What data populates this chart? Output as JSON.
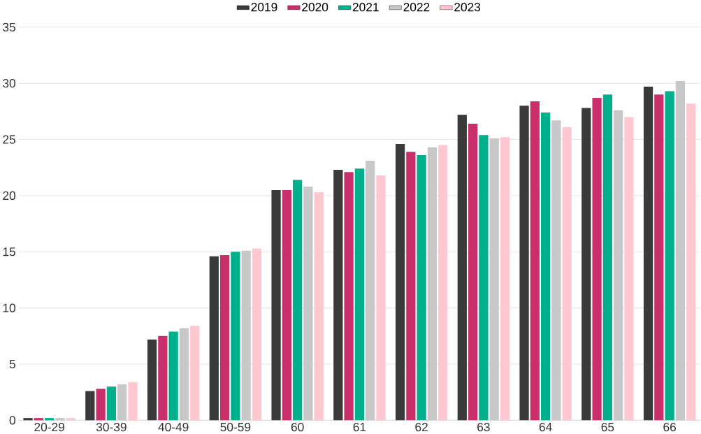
{
  "chart_data": {
    "type": "bar",
    "categories": [
      "20-29",
      "30-39",
      "40-49",
      "50-59",
      "60",
      "61",
      "62",
      "63",
      "64",
      "65",
      "66"
    ],
    "series": [
      {
        "name": "2019",
        "color": "#3a3a3a",
        "values": [
          0.2,
          2.6,
          7.2,
          14.6,
          20.5,
          22.3,
          24.6,
          27.2,
          28.0,
          27.8,
          29.7
        ]
      },
      {
        "name": "2020",
        "color": "#c9306b",
        "values": [
          0.2,
          2.8,
          7.5,
          14.7,
          20.5,
          22.1,
          23.9,
          26.4,
          28.4,
          28.7,
          29.0
        ]
      },
      {
        "name": "2021",
        "color": "#00b08c",
        "values": [
          0.2,
          3.0,
          7.9,
          15.0,
          21.4,
          22.4,
          23.6,
          25.4,
          27.4,
          29.0,
          29.3
        ]
      },
      {
        "name": "2022",
        "color": "#c8c8c8",
        "values": [
          0.2,
          3.2,
          8.2,
          15.1,
          20.8,
          23.1,
          24.3,
          25.1,
          26.7,
          27.6,
          30.2
        ]
      },
      {
        "name": "2023",
        "color": "#ffc8d0",
        "values": [
          0.2,
          3.4,
          8.4,
          15.3,
          20.3,
          21.8,
          24.5,
          25.2,
          26.1,
          27.0,
          28.2
        ]
      }
    ],
    "ylim": [
      0,
      35
    ],
    "yticks": [
      0,
      5,
      10,
      15,
      20,
      25,
      30,
      35
    ],
    "grid": "y",
    "legend": "top"
  }
}
